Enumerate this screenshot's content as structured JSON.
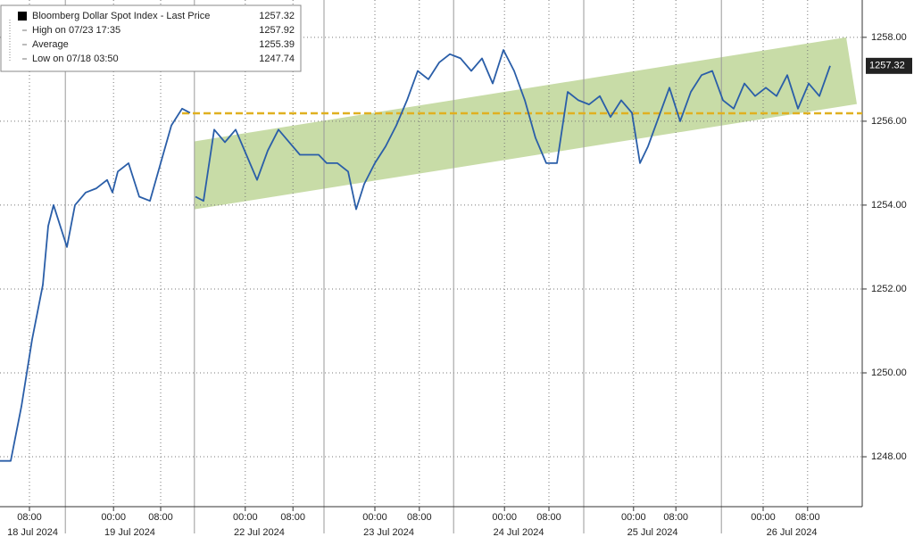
{
  "chart_data": {
    "type": "line",
    "legend_entries": [
      {
        "label": "Bloomberg Dollar Spot Index - Last Price",
        "value": 1257.32
      },
      {
        "label": "High on 07/23 17:35",
        "value": 1257.92
      },
      {
        "label": "Average",
        "value": 1255.39
      },
      {
        "label": "Low on 07/18 03:50",
        "value": 1247.74
      }
    ],
    "last_price_label": "1257.32",
    "series": [
      {
        "name": "Bloomberg Dollar Spot Index - Last Price",
        "color": "#2a5ea8",
        "x": [
          0,
          2,
          4,
          6,
          8,
          9,
          10,
          11,
          12.5,
          14,
          16,
          18,
          20,
          21,
          22,
          24,
          26,
          28,
          30,
          32,
          34,
          35.5,
          36,
          36.5,
          38,
          40,
          42,
          44,
          46,
          48,
          50,
          52,
          54,
          56,
          58,
          59.5,
          61,
          63,
          65,
          66.5,
          68,
          70,
          72,
          74,
          76,
          78,
          80,
          82,
          84,
          86,
          88,
          90,
          92,
          94,
          96,
          98,
          100,
          102,
          104,
          106,
          108,
          110,
          112,
          114,
          116,
          118,
          119.5,
          121,
          123,
          125,
          127,
          129,
          131,
          133,
          135,
          137,
          139,
          141,
          143,
          145,
          147,
          149,
          151,
          153,
          155
        ],
        "values": [
          1247.9,
          1247.9,
          1249.2,
          1250.8,
          1252.1,
          1253.5,
          1254.0,
          1253.6,
          1253.0,
          1254.0,
          1254.3,
          1254.4,
          1254.6,
          1254.3,
          1254.8,
          1255.0,
          1254.2,
          1254.1,
          1255.0,
          1255.9,
          1256.3,
          1256.2,
          null,
          1254.2,
          1254.1,
          1255.8,
          1255.5,
          1255.8,
          1255.2,
          1254.6,
          1255.3,
          1255.8,
          1255.5,
          1255.2,
          1255.2,
          1255.2,
          1255.0,
          1255.0,
          1254.8,
          1253.9,
          1254.5,
          1255.0,
          1255.4,
          1255.9,
          1256.5,
          1257.2,
          1257.0,
          1257.4,
          1257.6,
          1257.5,
          1257.2,
          1257.5,
          1256.9,
          1257.7,
          1257.2,
          1256.5,
          1255.6,
          1255.0,
          1255.0,
          1256.7,
          1256.5,
          1256.4,
          1256.6,
          1256.1,
          1256.5,
          1256.2,
          1255.0,
          1255.4,
          1256.1,
          1256.8,
          1256.0,
          1256.7,
          1257.1,
          1257.2,
          1256.5,
          1256.3,
          1256.9,
          1256.6,
          1256.8,
          1256.6,
          1257.1,
          1256.3,
          1256.9,
          1256.6,
          1257.32
        ]
      }
    ],
    "channel": {
      "color": "#b5d08a",
      "x": [
        36.3,
        160,
        158,
        36.3
      ],
      "values": [
        1253.9,
        1256.41,
        1258.0,
        1255.52
      ]
    },
    "reference_line": {
      "color": "#e0b020",
      "x": [
        34,
        161
      ],
      "value": 1256.19
    },
    "xlim": [
      0,
      161
    ],
    "xticks": [
      {
        "value": 5.5,
        "label": "08:00"
      },
      {
        "value": 21.2,
        "label": "00:00"
      },
      {
        "value": 30,
        "label": "08:00"
      },
      {
        "value": 45.8,
        "label": "00:00"
      },
      {
        "value": 54.7,
        "label": "08:00"
      },
      {
        "value": 70,
        "label": "00:00"
      },
      {
        "value": 78.3,
        "label": "08:00"
      },
      {
        "value": 94.2,
        "label": "00:00"
      },
      {
        "value": 102.5,
        "label": "08:00"
      },
      {
        "value": 118.3,
        "label": "00:00"
      },
      {
        "value": 126.2,
        "label": "08:00"
      },
      {
        "value": 142.5,
        "label": "00:00"
      },
      {
        "value": 150.8,
        "label": "08:00"
      }
    ],
    "date_groups": [
      {
        "label": "18 Jul 2024",
        "start": 0,
        "end": 12.2
      },
      {
        "label": "19 Jul 2024",
        "start": 12.2,
        "end": 36.3
      },
      {
        "label": "22 Jul 2024",
        "start": 36.3,
        "end": 60.5
      },
      {
        "label": "23 Jul 2024",
        "start": 60.5,
        "end": 84.7
      },
      {
        "label": "24 Jul 2024",
        "start": 84.7,
        "end": 109
      },
      {
        "label": "25 Jul 2024",
        "start": 109,
        "end": 134.7
      },
      {
        "label": "26 Jul 2024",
        "start": 134.7,
        "end": 161
      }
    ],
    "ylim": [
      1246.81,
      1258.89
    ],
    "yticks": [
      {
        "value": 1248,
        "label": "1248.00"
      },
      {
        "value": 1250,
        "label": "1250.00"
      },
      {
        "value": 1252,
        "label": "1252.00"
      },
      {
        "value": 1254,
        "label": "1254.00"
      },
      {
        "value": 1256,
        "label": "1256.00"
      },
      {
        "value": 1258,
        "label": "1258.00"
      }
    ],
    "grid": true
  }
}
